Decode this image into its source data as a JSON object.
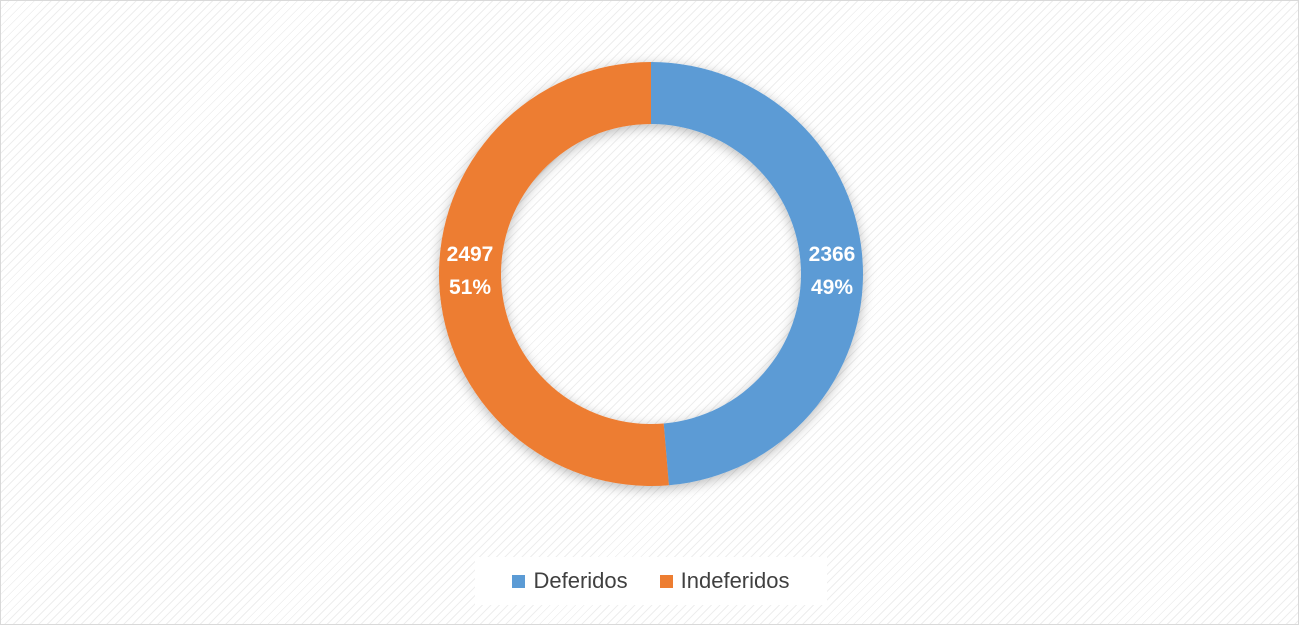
{
  "chart_data": {
    "type": "pie",
    "variant": "donut",
    "title": "",
    "categories": [
      "Deferidos",
      "Indeferidos"
    ],
    "values": [
      2366,
      2497
    ],
    "percent_labels": [
      "49%",
      "51%"
    ],
    "value_labels": [
      "2366",
      "2497"
    ],
    "colors": [
      "#5b9bd5",
      "#ed7d31"
    ],
    "legend": {
      "placement": "bottom",
      "entries": [
        "Deferidos",
        "Indeferidos"
      ]
    },
    "grid": false
  }
}
